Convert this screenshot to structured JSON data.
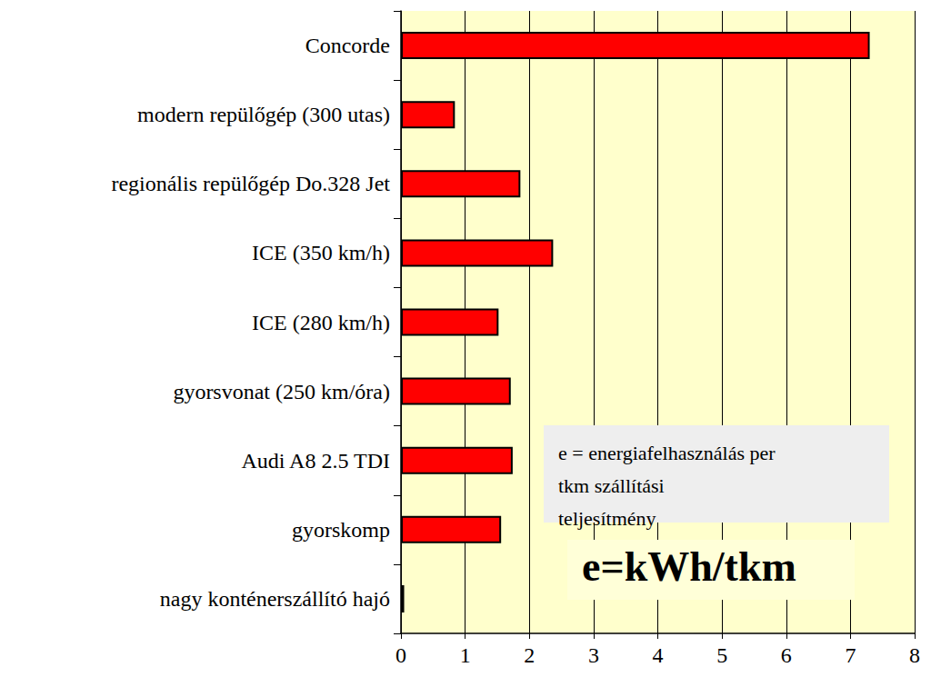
{
  "chart_data": {
    "type": "bar",
    "orientation": "horizontal",
    "categories": [
      "Concorde",
      "modern repülőgép (300 utas)",
      "regionális repülőgép Do.328 Jet",
      "ICE (350 km/h)",
      "ICE (280 km/h)",
      "gyorsvonat (250 km/óra)",
      "Audi A8 2.5 TDI",
      "gyorskomp",
      "nagy konténerszállító hajó"
    ],
    "values": [
      7.3,
      0.84,
      1.86,
      2.37,
      1.52,
      1.71,
      1.74,
      1.56,
      0.05
    ],
    "color": "#ff0000",
    "xlim": [
      0,
      8
    ],
    "xticks": [
      0,
      1,
      2,
      3,
      4,
      5,
      6,
      7,
      8
    ],
    "grid": true,
    "annotations": [
      "e = energiafelhasználás per tkm szállítási teljesítmény",
      "e=kWh/tkm"
    ]
  }
}
